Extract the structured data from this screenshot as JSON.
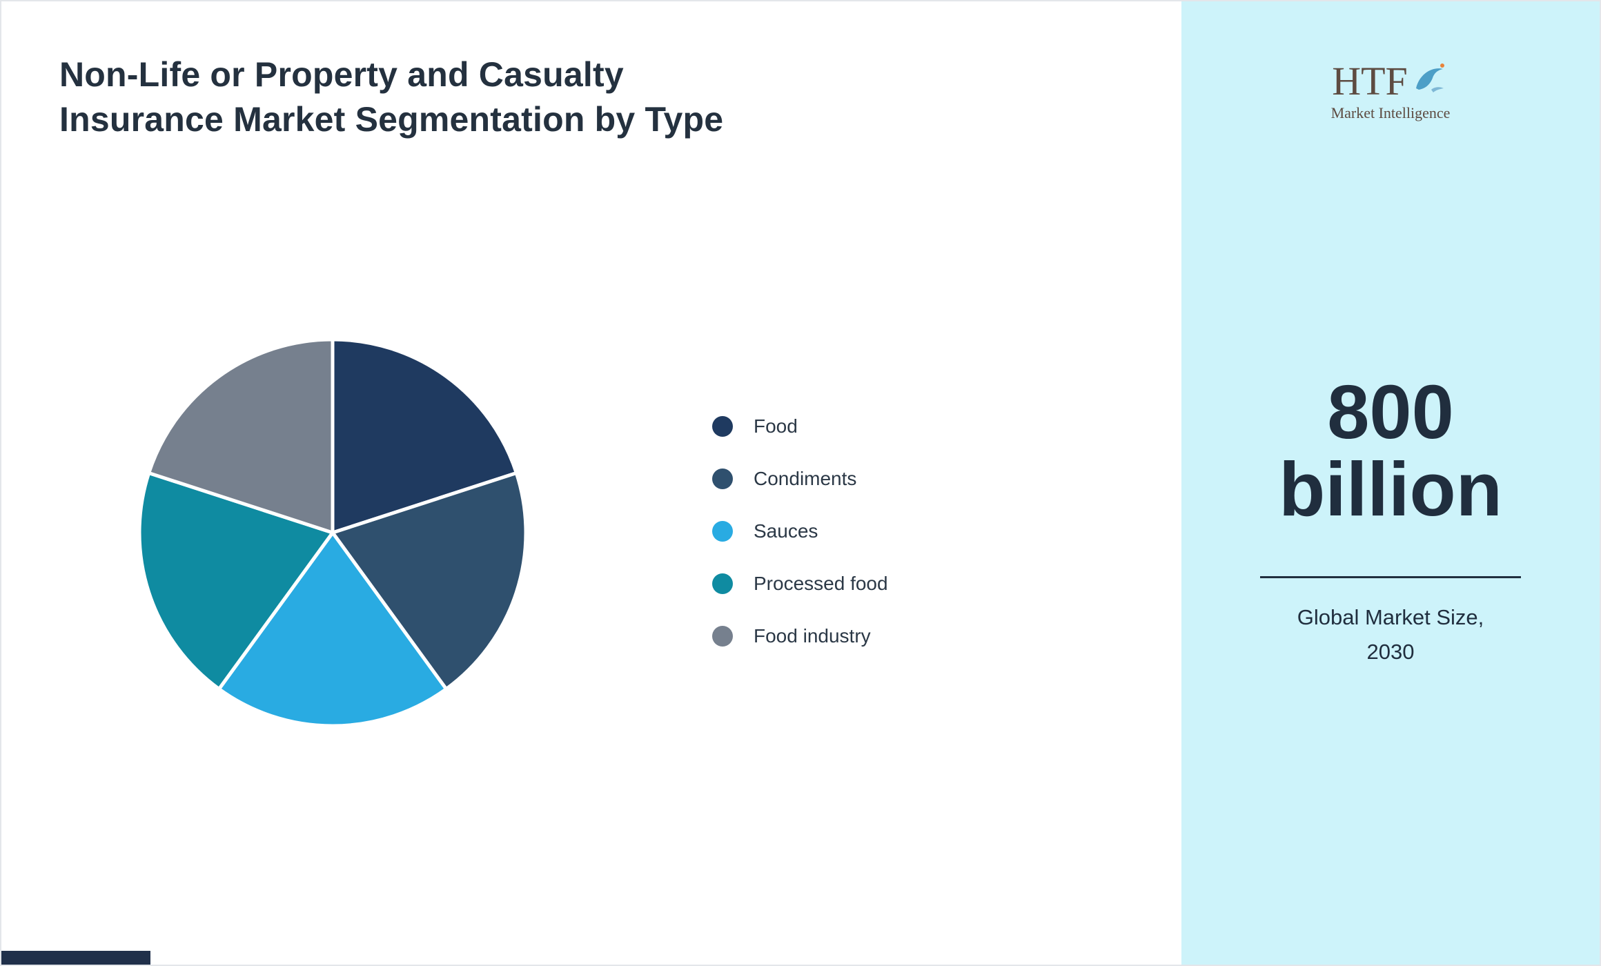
{
  "header": {
    "title": "Non-Life or Property and Casualty Insurance Market Segmentation by Type",
    "title_lines": [
      "Non-Life or Property and Casualty",
      "Insurance Market Segmentation by",
      "Type"
    ]
  },
  "chart_data": {
    "type": "pie",
    "title": "Non-Life or Property and Casualty Insurance Market Segmentation by Type",
    "categories": [
      "Food",
      "Condiments",
      "Sauces",
      "Processed food",
      "Food industry"
    ],
    "values": [
      20,
      20,
      20,
      20,
      20
    ],
    "colors": [
      "#1f3a60",
      "#2f506e",
      "#29abe2",
      "#0f8ba1",
      "#76808e"
    ],
    "start_angle_deg": -90,
    "direction": "clockwise",
    "legend_position": "right",
    "slice_gap_color": "#ffffff"
  },
  "legend": {
    "items": [
      {
        "label": "Food",
        "color": "#1f3a60"
      },
      {
        "label": "Condiments",
        "color": "#2f506e"
      },
      {
        "label": "Sauces",
        "color": "#29abe2"
      },
      {
        "label": "Processed food",
        "color": "#0f8ba1"
      },
      {
        "label": "Food industry",
        "color": "#76808e"
      }
    ]
  },
  "sidebar": {
    "background_color": "#cdf3fa",
    "logo": {
      "text": "HTF",
      "subtext": "Market Intelligence",
      "dolphin_icon": "dolphin-icon"
    },
    "market_size": {
      "value_line1": "800",
      "value_line2": "billion",
      "value_full": "800 billion",
      "caption_line1": "Global Market Size,",
      "caption_line2": "2030"
    }
  }
}
